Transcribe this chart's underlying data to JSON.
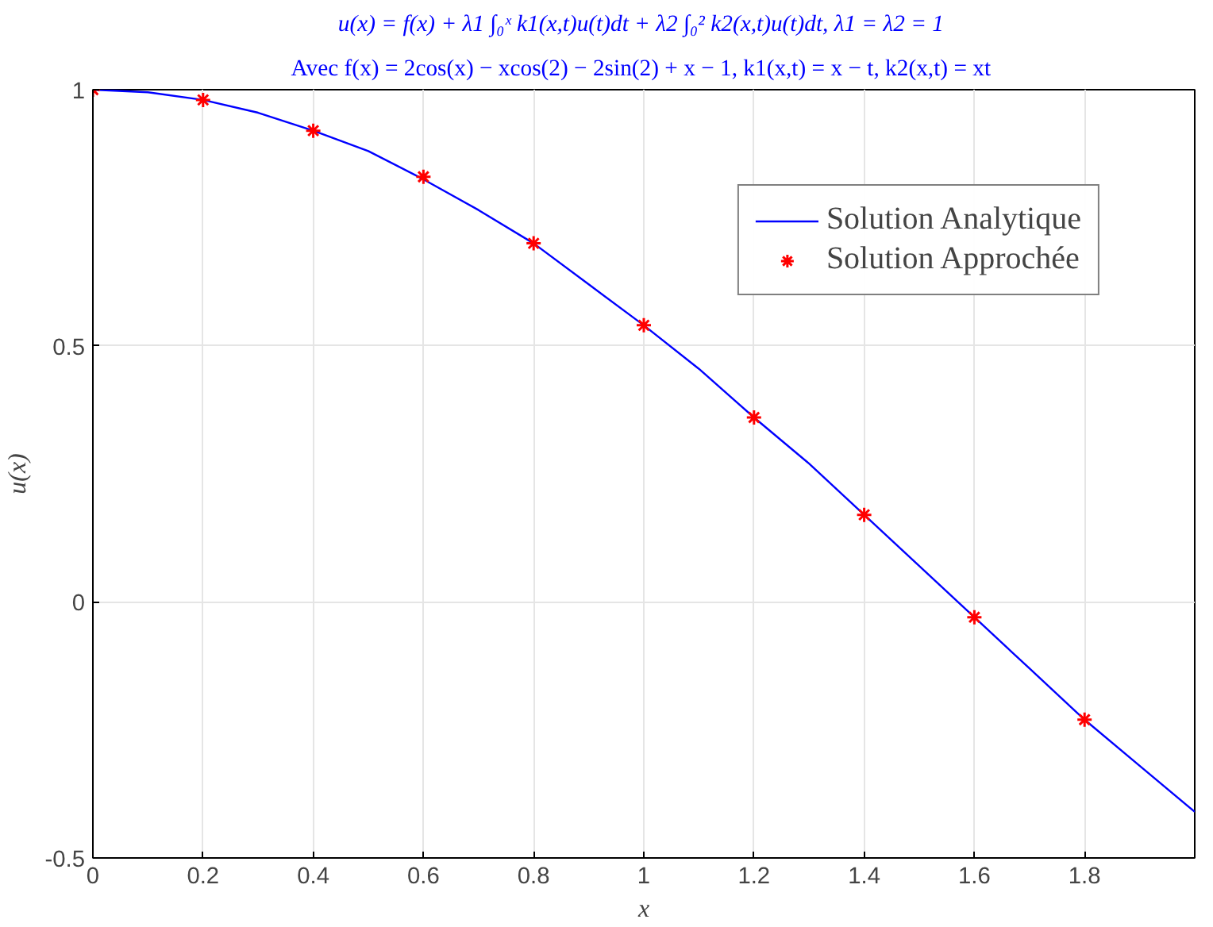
{
  "chart_data": {
    "type": "line",
    "title": "u(x) = f(x) + λ1 ∫₀ˣ k1(x,t)u(t)dt + λ2 ∫₀² k2(x,t)u(t)dt,  λ1 = λ2 = 1",
    "subtitle": "Avec f(x) = 2cos(x) − xcos(2) − 2sin(2) + x − 1,  k1(x,t) = x − t, k2(x,t) = xt",
    "xlabel": "x",
    "ylabel": "u(x)",
    "series": [
      {
        "name": "Solution Analytique",
        "color": "#0000ff",
        "marker": "none",
        "line_style": "solid",
        "x": [
          0,
          0.1,
          0.2,
          0.3,
          0.4,
          0.5,
          0.6,
          0.7,
          0.8,
          0.9,
          1.0,
          1.1,
          1.2,
          1.3,
          1.4,
          1.5,
          1.6,
          1.7,
          1.8,
          1.9,
          2.0
        ],
        "values": [
          1,
          0.995,
          0.98,
          0.955,
          0.92,
          0.88,
          0.825,
          0.765,
          0.7,
          0.62,
          0.54,
          0.455,
          0.36,
          0.27,
          0.17,
          0.07,
          -0.03,
          -0.13,
          -0.23,
          -0.32,
          -0.41
        ]
      },
      {
        "name": "Solution Approchée",
        "type": "scatter",
        "color": "#ff0000",
        "marker": "cross",
        "x": [
          0,
          0.2,
          0.4,
          0.6,
          0.8,
          1.0,
          1.2,
          1.4,
          1.6,
          1.8
        ],
        "values": [
          1,
          0.98,
          0.92,
          0.83,
          0.7,
          0.54,
          0.36,
          0.17,
          -0.03,
          -0.23
        ]
      }
    ],
    "xlim": [
      0,
      2
    ],
    "xticks": [
      0,
      0.2,
      0.4,
      0.6,
      0.8,
      1,
      1.2,
      1.4,
      1.6,
      1.8
    ],
    "ylim": [
      -0.5,
      1
    ],
    "yticks": [
      -0.5,
      0,
      0.5,
      1
    ],
    "grid": true,
    "legend": "top right"
  }
}
